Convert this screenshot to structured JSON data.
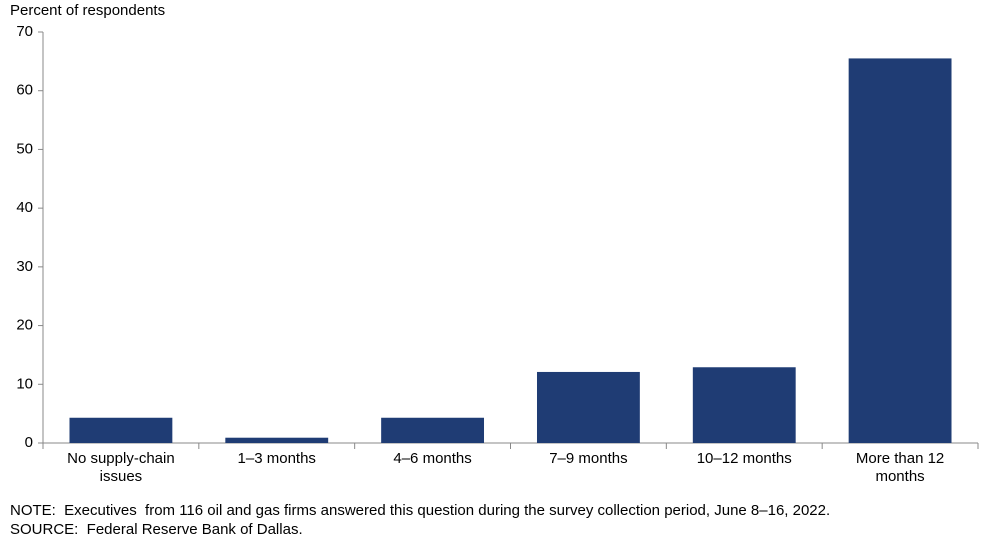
{
  "chart_data": {
    "type": "bar",
    "y_axis_label": "Percent of respondents",
    "categories": [
      "No supply-chain issues",
      "1–3 months",
      "4–6 months",
      "7–9 months",
      "10–12 months",
      "More than 12 months"
    ],
    "values": [
      4.3,
      0.9,
      4.3,
      12.1,
      12.9,
      65.5
    ],
    "color": "#1f3c74",
    "ylim": [
      0,
      70
    ],
    "yticks": [
      0,
      10,
      20,
      30,
      40,
      50,
      60,
      70
    ],
    "grid": false,
    "note": "NOTE:  Executives  from 116 oil and gas firms answered this question during the survey collection period, June 8–16, 2022.",
    "source": "SOURCE:  Federal Reserve Bank of Dallas."
  }
}
